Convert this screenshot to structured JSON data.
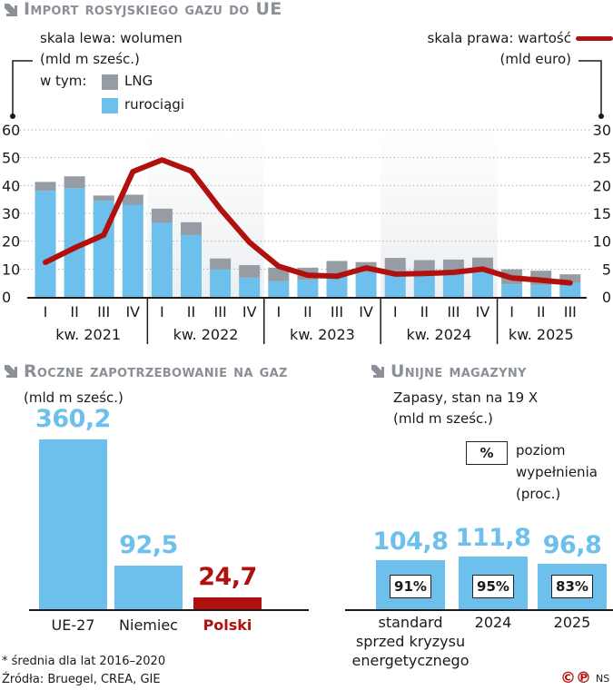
{
  "colors": {
    "pipeline": "#6ec0ec",
    "lng": "#969ca3",
    "value_line": "#b0110e",
    "title_gray": "#8a9096",
    "poland_red": "#b0110e",
    "shade": "#eceef1"
  },
  "chart_data": [
    {
      "type": "bar",
      "stacked": true,
      "secondary_type": "line",
      "title": "Import rosyjskiego gazu do UE",
      "left_axis_label": [
        "skala lewa: wolumen",
        "(mld m sześc.)"
      ],
      "right_axis_label": [
        "skala prawa: wartość",
        "(mld euro)"
      ],
      "legend_prefix": "w tym:",
      "legend": [
        {
          "name": "LNG",
          "color_key": "lng"
        },
        {
          "name": "rurociągi",
          "color_key": "pipeline"
        }
      ],
      "y_left": {
        "min": 0,
        "max": 60,
        "ticks": [
          0,
          10,
          20,
          30,
          40,
          50,
          60
        ]
      },
      "y_right": {
        "min": 0,
        "max": 30,
        "ticks": [
          0,
          5,
          10,
          15,
          20,
          25,
          30
        ]
      },
      "grid": true,
      "years": [
        {
          "label": "kw. 2021",
          "quarters": [
            "I",
            "II",
            "III",
            "IV"
          ],
          "shaded": false
        },
        {
          "label": "kw. 2022",
          "quarters": [
            "I",
            "II",
            "III",
            "IV"
          ],
          "shaded": true
        },
        {
          "label": "kw. 2023",
          "quarters": [
            "I",
            "II",
            "III",
            "IV"
          ],
          "shaded": false
        },
        {
          "label": "kw. 2024",
          "quarters": [
            "I",
            "II",
            "III",
            "IV"
          ],
          "shaded": true
        },
        {
          "label": "kw. 2025",
          "quarters": [
            "I",
            "II",
            "III"
          ],
          "shaded": false
        }
      ],
      "categories": [
        "2021 I",
        "2021 II",
        "2021 III",
        "2021 IV",
        "2022 I",
        "2022 II",
        "2022 III",
        "2022 IV",
        "2023 I",
        "2023 II",
        "2023 III",
        "2023 IV",
        "2024 I",
        "2024 II",
        "2024 III",
        "2024 IV",
        "2025 I",
        "2025 II",
        "2025 III"
      ],
      "series": [
        {
          "name": "rurociągi",
          "axis": "left",
          "values": [
            38.1,
            39.1,
            34.5,
            33.1,
            26.6,
            22.2,
            9.8,
            6.9,
            5.6,
            6.1,
            7.2,
            8.9,
            9.5,
            9.3,
            9.4,
            9.6,
            4.5,
            4.2,
            5.0
          ]
        },
        {
          "name": "LNG",
          "axis": "left",
          "values": [
            3.2,
            4.2,
            1.9,
            3.6,
            5.1,
            4.6,
            4.0,
            4.5,
            4.9,
            4.4,
            5.7,
            3.6,
            4.5,
            3.9,
            4.0,
            4.5,
            5.4,
            5.2,
            3.1
          ]
        },
        {
          "name": "wartość",
          "axis": "right",
          "values": [
            6.2,
            8.8,
            11.1,
            22.5,
            24.6,
            22.6,
            15.8,
            9.8,
            5.5,
            3.9,
            3.7,
            5.2,
            4.1,
            4.2,
            4.4,
            5.0,
            3.4,
            3.0,
            2.5
          ]
        }
      ]
    },
    {
      "type": "bar",
      "title": "Roczne zapotrzebowanie na gaz",
      "unit_label": "(mld m sześc.)",
      "categories": [
        "UE-27",
        "Niemiec",
        "Polski"
      ],
      "values": [
        360.2,
        92.5,
        24.7
      ],
      "value_labels": [
        "360,2",
        "92,5",
        "24,7"
      ],
      "highlight": "Polski"
    },
    {
      "type": "bar",
      "title": "Unijne magazyny",
      "subtitle": [
        "Zapasy, stan na 19 X",
        "(mld m sześc.)"
      ],
      "legend_box": "%",
      "legend_text": [
        "poziom",
        "wypełnienia",
        "(proc.)"
      ],
      "categories": [
        [
          "standard",
          "sprzed kryzysu",
          "energetycznego"
        ],
        [
          "2024"
        ],
        [
          "2025"
        ]
      ],
      "values": [
        104.8,
        111.8,
        96.8
      ],
      "value_labels": [
        "104,8",
        "111,8",
        "96,8"
      ],
      "fill_percent": [
        91,
        95,
        83
      ],
      "fill_labels": [
        "91%",
        "95%",
        "83%"
      ]
    }
  ],
  "footer": {
    "note": "* średnia dla lat 2016–2020",
    "sources": "Źródła: Bruegel, CREA, GIE",
    "copyright_icons": [
      "©",
      "℗"
    ],
    "author": "NS"
  }
}
